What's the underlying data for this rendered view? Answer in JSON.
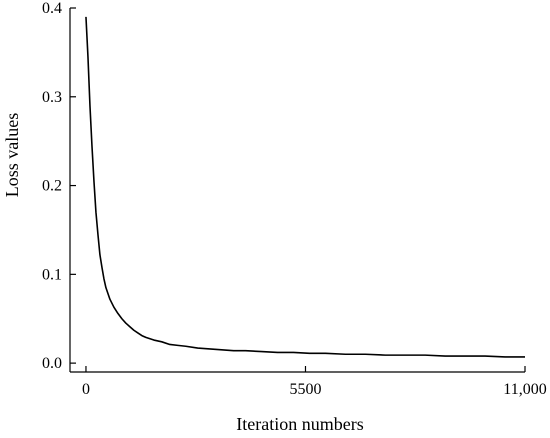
{
  "chart_data": {
    "type": "line",
    "title": "",
    "xlabel": "Iteration numbers",
    "ylabel": "Loss values",
    "xlim": [
      -400,
      11000
    ],
    "ylim": [
      -0.01,
      0.4
    ],
    "x_ticks": [
      {
        "value": 0,
        "label": "0"
      },
      {
        "value": 5500,
        "label": "5500"
      },
      {
        "value": 11000,
        "label": "11,000"
      }
    ],
    "y_ticks": [
      {
        "value": 0.0,
        "label": "0.0"
      },
      {
        "value": 0.1,
        "label": "0.1"
      },
      {
        "value": 0.2,
        "label": "0.2"
      },
      {
        "value": 0.3,
        "label": "0.3"
      },
      {
        "value": 0.4,
        "label": "0.4"
      }
    ],
    "grid": false,
    "legend": "none",
    "series": [
      {
        "color": "#000000",
        "x": [
          0,
          50,
          100,
          150,
          200,
          250,
          300,
          350,
          400,
          450,
          500,
          600,
          700,
          800,
          900,
          1000,
          1100,
          1200,
          1300,
          1400,
          1500,
          1700,
          1900,
          2100,
          2300,
          2500,
          2800,
          3100,
          3400,
          3700,
          4000,
          4400,
          4800,
          5200,
          5600,
          6000,
          6500,
          7000,
          7500,
          8000,
          8500,
          9000,
          9500,
          10000,
          10500,
          11000
        ],
        "y": [
          0.39,
          0.345,
          0.29,
          0.245,
          0.205,
          0.17,
          0.145,
          0.122,
          0.108,
          0.095,
          0.085,
          0.072,
          0.063,
          0.056,
          0.05,
          0.045,
          0.041,
          0.037,
          0.034,
          0.031,
          0.029,
          0.026,
          0.024,
          0.021,
          0.02,
          0.019,
          0.017,
          0.016,
          0.015,
          0.014,
          0.014,
          0.013,
          0.012,
          0.012,
          0.011,
          0.011,
          0.01,
          0.01,
          0.009,
          0.009,
          0.009,
          0.008,
          0.008,
          0.008,
          0.007,
          0.007
        ]
      }
    ]
  }
}
